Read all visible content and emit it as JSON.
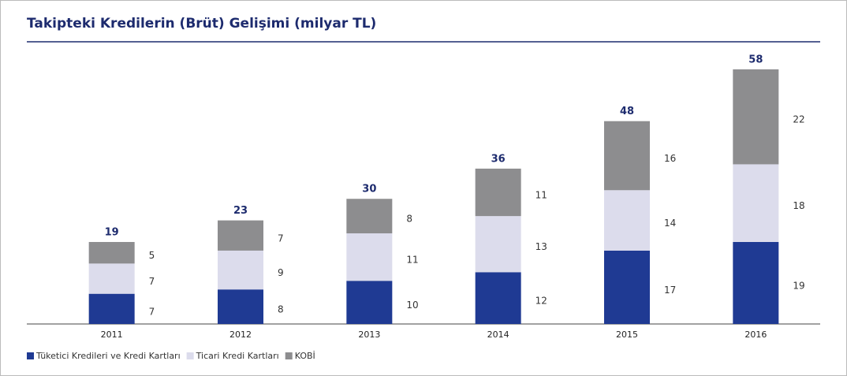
{
  "chart_data": {
    "type": "stacked_bar",
    "title": "Takipteki Kredilerin (Brüt) Gelişimi (milyar TL)",
    "categories": [
      "2011",
      "2012",
      "2013",
      "2014",
      "2015",
      "2016"
    ],
    "series": [
      {
        "name": "Tüketici Kredileri ve Kredi Kartları",
        "color": "#1f3a93",
        "values": [
          7,
          8,
          10,
          12,
          17,
          19
        ]
      },
      {
        "name": "Ticari Kredi Kartları",
        "color": "#dcdcec",
        "values": [
          7,
          9,
          11,
          13,
          14,
          18
        ]
      },
      {
        "name": "KOBİ",
        "color": "#8d8d8f",
        "values": [
          5,
          7,
          8,
          11,
          16,
          22
        ]
      }
    ],
    "totals": [
      19,
      23,
      30,
      36,
      48,
      58
    ]
  }
}
